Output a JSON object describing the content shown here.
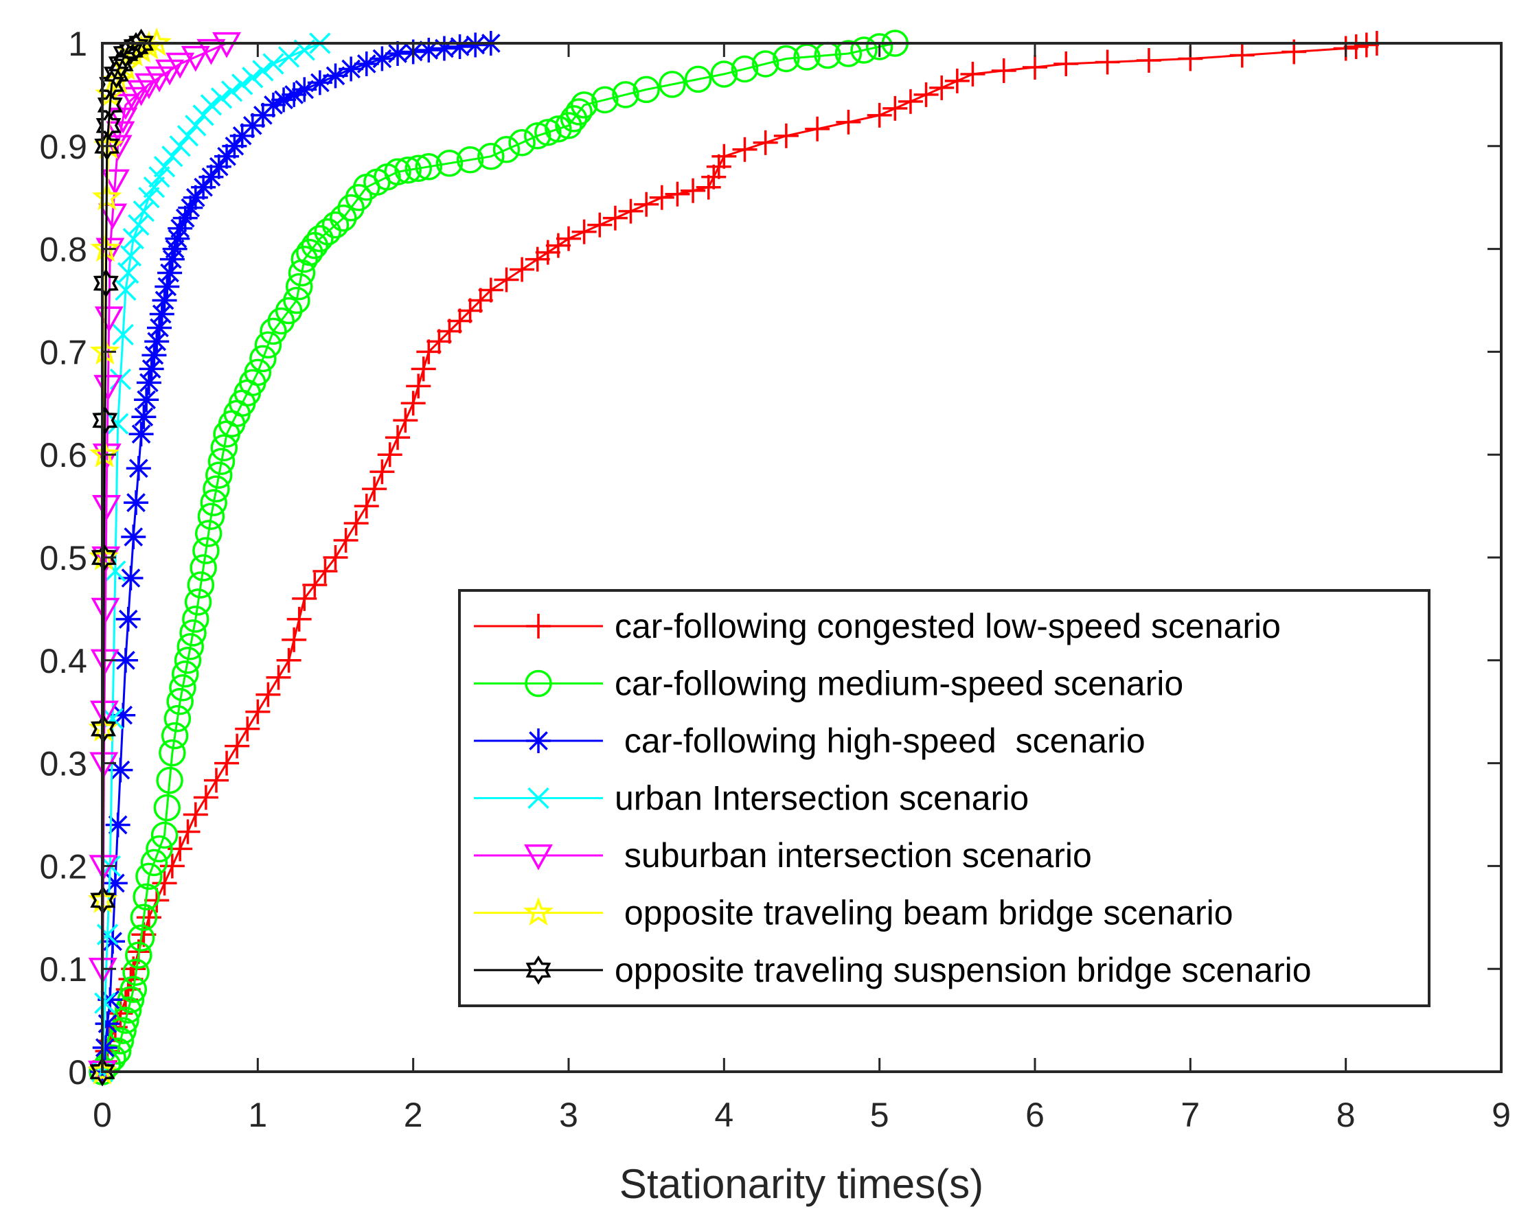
{
  "chart_data": {
    "type": "line",
    "title": "",
    "xlabel": "Stationarity times(s)",
    "ylabel": "",
    "xlim": [
      0,
      9
    ],
    "ylim": [
      0,
      1
    ],
    "xticks": [
      0,
      1,
      2,
      3,
      4,
      5,
      6,
      7,
      8,
      9
    ],
    "xtick_labels": [
      "0",
      "1",
      "2",
      "3",
      "4",
      "5",
      "6",
      "7",
      "8",
      "9"
    ],
    "yticks": [
      0,
      0.1,
      0.2,
      0.3,
      0.4,
      0.5,
      0.6,
      0.7,
      0.8,
      0.9,
      1
    ],
    "ytick_labels": [
      "0",
      "0.1",
      "0.2",
      "0.3",
      "0.4",
      "0.5",
      "0.6",
      "0.7",
      "0.8",
      "0.9",
      "1"
    ],
    "grid": false,
    "legend_position": "lower-right",
    "series": [
      {
        "name": "car-following congested low-speed scenario",
        "color": "#ff0000",
        "marker": "plus",
        "x": [
          0,
          0.05,
          0.15,
          0.2,
          0.3,
          0.45,
          0.6,
          0.8,
          1.0,
          1.2,
          1.3,
          1.5,
          1.7,
          1.85,
          2.0,
          2.1,
          2.3,
          2.5,
          2.8,
          3.0,
          3.3,
          3.6,
          3.9,
          4.0,
          4.4,
          5.0,
          5.3,
          5.6,
          6.2,
          7.0,
          8.0,
          8.2
        ],
        "y": [
          0,
          0.03,
          0.07,
          0.1,
          0.15,
          0.2,
          0.25,
          0.3,
          0.35,
          0.4,
          0.46,
          0.5,
          0.55,
          0.6,
          0.65,
          0.7,
          0.73,
          0.76,
          0.79,
          0.81,
          0.83,
          0.85,
          0.86,
          0.89,
          0.91,
          0.93,
          0.95,
          0.97,
          0.98,
          0.985,
          0.995,
          1
        ]
      },
      {
        "name": "car-following medium-speed scenario",
        "color": "#00ff00",
        "marker": "circle",
        "x": [
          0,
          0.1,
          0.15,
          0.2,
          0.25,
          0.3,
          0.4,
          0.45,
          0.5,
          0.55,
          0.6,
          0.65,
          0.7,
          0.75,
          0.8,
          0.9,
          1.0,
          1.1,
          1.25,
          1.3,
          1.4,
          1.55,
          1.7,
          1.9,
          2.1,
          2.5,
          2.8,
          3.0,
          3.1,
          3.5,
          4.0,
          4.4,
          4.8,
          5.1
        ],
        "y": [
          0,
          0.02,
          0.05,
          0.08,
          0.13,
          0.19,
          0.23,
          0.31,
          0.36,
          0.4,
          0.44,
          0.49,
          0.54,
          0.58,
          0.62,
          0.65,
          0.68,
          0.72,
          0.75,
          0.79,
          0.81,
          0.83,
          0.86,
          0.875,
          0.88,
          0.89,
          0.91,
          0.92,
          0.94,
          0.955,
          0.97,
          0.985,
          0.99,
          1
        ]
      },
      {
        "name": " car-following high-speed  scenario",
        "color": "#0000ff",
        "marker": "asterisk",
        "x": [
          0,
          0.05,
          0.1,
          0.15,
          0.2,
          0.25,
          0.3,
          0.35,
          0.4,
          0.45,
          0.5,
          0.6,
          0.75,
          0.9,
          1.1,
          1.3,
          1.6,
          1.9,
          2.2,
          2.5
        ],
        "y": [
          0,
          0.07,
          0.24,
          0.4,
          0.52,
          0.62,
          0.67,
          0.71,
          0.75,
          0.79,
          0.82,
          0.85,
          0.88,
          0.91,
          0.94,
          0.955,
          0.975,
          0.99,
          0.995,
          1
        ]
      },
      {
        "name": "urban Intersection scenario",
        "color": "#00ffff",
        "marker": "cross",
        "x": [
          0,
          0.05,
          0.1,
          0.15,
          0.2,
          0.3,
          0.4,
          0.55,
          0.7,
          0.9,
          1.1,
          1.4
        ],
        "y": [
          0,
          0.2,
          0.63,
          0.76,
          0.81,
          0.85,
          0.88,
          0.91,
          0.94,
          0.96,
          0.98,
          1
        ]
      },
      {
        "name": " suburban intersection scenario",
        "color": "#ff00ff",
        "marker": "triangle-down",
        "x": [
          0,
          0.01,
          0.02,
          0.03,
          0.05,
          0.1,
          0.15,
          0.3,
          0.5,
          0.8
        ],
        "y": [
          0,
          0.3,
          0.45,
          0.6,
          0.8,
          0.9,
          0.94,
          0.96,
          0.98,
          1
        ]
      },
      {
        "name": " opposite traveling beam bridge scenario",
        "color": "#ffff00",
        "marker": "pentagram",
        "x": [
          0,
          0.01,
          0.02,
          0.05,
          0.2,
          0.35
        ],
        "y": [
          0,
          0.5,
          0.8,
          0.95,
          0.99,
          1
        ]
      },
      {
        "name": "opposite traveling suspension bridge scenario",
        "color": "#000000",
        "marker": "hexagram",
        "x": [
          0,
          0.01,
          0.03,
          0.06,
          0.15,
          0.25
        ],
        "y": [
          0,
          0.5,
          0.9,
          0.96,
          0.99,
          1
        ]
      }
    ]
  }
}
